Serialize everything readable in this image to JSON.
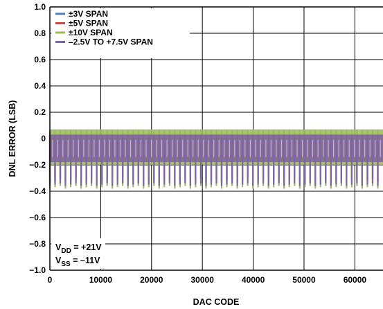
{
  "chart_data": {
    "type": "line",
    "xlabel": "DAC CODE",
    "ylabel": "DNL ERROR (LSB)",
    "xlim": [
      0,
      65535
    ],
    "ylim": [
      -1.0,
      1.0
    ],
    "x_ticks": [
      "0",
      "10000",
      "20000",
      "30000",
      "40000",
      "50000",
      "60000"
    ],
    "y_ticks": [
      "1.0",
      "0.8",
      "0.6",
      "0.4",
      "0.2",
      "0",
      "−0.2",
      "−0.4",
      "−0.6",
      "−0.8",
      "−1.0"
    ],
    "grid": true,
    "legend_position": "top-left",
    "series": [
      {
        "name": "±3V SPAN",
        "color": "#4f81bd",
        "upper": 0.03,
        "lower_typ": -0.17,
        "lower_spike": -0.33
      },
      {
        "name": "±5V SPAN",
        "color": "#c0504d",
        "upper": 0.03,
        "lower_typ": -0.17,
        "lower_spike": -0.33
      },
      {
        "name": "±10V SPAN",
        "color": "#9bbb59",
        "upper": 0.07,
        "lower_typ": -0.2,
        "lower_spike": -0.38
      },
      {
        "name": "–2.5V TO +7.5V SPAN",
        "color": "#8064a2",
        "upper": 0.03,
        "lower_typ": -0.18,
        "lower_spike": -0.36
      }
    ],
    "annotation": {
      "vdd_label": "V",
      "vdd_sub": "DD",
      "vdd_value": " = +21V",
      "vss_label": "V",
      "vss_sub": "SS",
      "vss_value": " = –11V"
    }
  }
}
